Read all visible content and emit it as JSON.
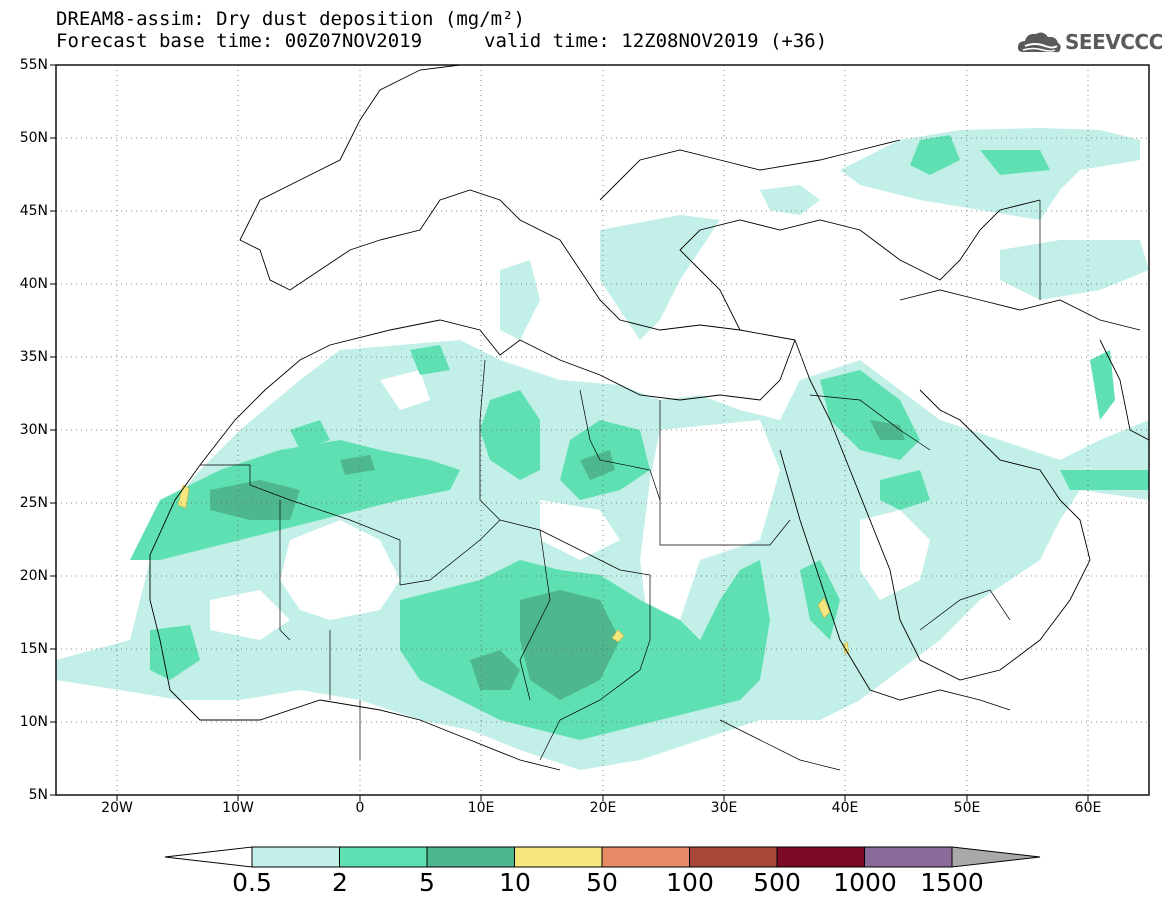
{
  "header": {
    "title": "DREAM8-assim: Dry dust deposition (mg/m²)",
    "base_time": "Forecast base time: 00Z07NOV2019",
    "valid_time": "valid time: 12Z08NOV2019 (+36)"
  },
  "logo": {
    "text": "SEEVCCC",
    "icon": "cloud-icon"
  },
  "map": {
    "lat_labels": [
      "55N",
      "50N",
      "45N",
      "40N",
      "35N",
      "30N",
      "25N",
      "20N",
      "15N",
      "10N",
      "5N"
    ],
    "lon_labels": [
      "20W",
      "10W",
      "0",
      "10E",
      "20E",
      "30E",
      "40E",
      "50E",
      "60E"
    ],
    "extent": {
      "lon": [
        -25,
        65
      ],
      "lat": [
        5,
        55
      ]
    }
  },
  "colorbar": {
    "labels": [
      "0.5",
      "2",
      "5",
      "10",
      "50",
      "100",
      "500",
      "1000",
      "1500"
    ],
    "colors": [
      "#c2efe8",
      "#5fe0b2",
      "#4fb78e",
      "#f5e67f",
      "#e68a68",
      "#a84838",
      "#7a0a28",
      "#8a6a9a",
      "#a9a9a9"
    ]
  },
  "chart_data": {
    "type": "heatmap",
    "title": "DREAM8-assim: Dry dust deposition (mg/m²)",
    "variable": "Dry dust deposition",
    "units": "mg/m²",
    "levels": [
      0.5,
      2,
      5,
      10,
      50,
      100,
      500,
      1000,
      1500
    ],
    "colors": [
      "#c2efe8",
      "#5fe0b2",
      "#4fb78e",
      "#f5e67f",
      "#e68a68",
      "#a84838",
      "#7a0a28",
      "#8a6a9a",
      "#a9a9a9"
    ],
    "lon_range": [
      -25,
      65
    ],
    "lat_range": [
      5,
      55
    ],
    "grid": "dotted"
  }
}
